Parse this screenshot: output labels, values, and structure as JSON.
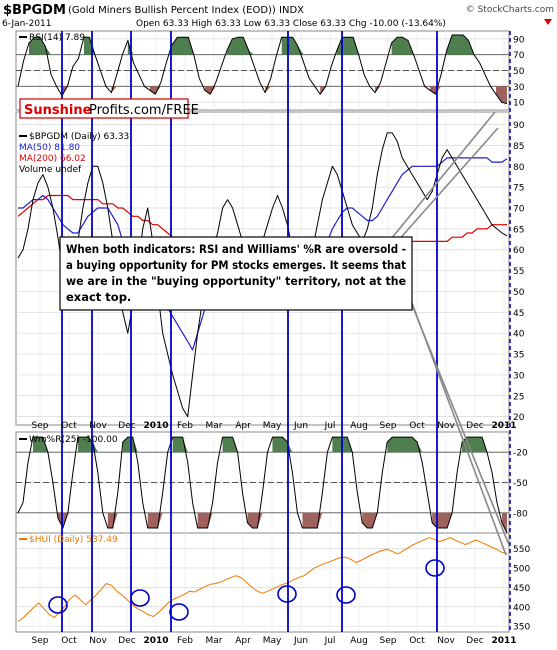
{
  "header": {
    "symbol": "$BPGDM",
    "name": "(Gold Miners Bullish Percent Index (EOD)) INDX",
    "date": "6-Jan-2011",
    "quote": "Open 63.33  High 63.33  Low 63.33  Close 63.33  Chg -10.00 (-13.64%)",
    "copyright": "© StockCharts.com"
  },
  "watermark": {
    "part1": "Sunshine",
    "part2": "Profits.com/FREE"
  },
  "annotation": {
    "lines": [
      "When both indicators: RSI and Williams' %R are oversold -",
      "a buying opportunity for PM stocks emerges. It seems that",
      "we are in the \"buying opportunity\" territory, not at the",
      "exact top."
    ]
  },
  "colors": {
    "price": "#000000",
    "ma50": "#1f1fcf",
    "ma200": "#e00000",
    "hui": "#f07800",
    "overbought_fill": "#4f7f4f",
    "oversold_fill": "#a0625c",
    "vline": "#0000cc",
    "circle": "#0000cc",
    "brand_red": "#e00000",
    "arrow": "#888888"
  },
  "chart_data": [
    {
      "panel": "rsi",
      "type": "line",
      "legend": "RSI(14) 7.89",
      "y_ticks": [
        "90",
        "70",
        "50",
        "30",
        "10"
      ],
      "ylim": [
        0,
        100
      ],
      "levels": [
        70,
        30
      ],
      "series": [
        {
          "name": "RSI(14)",
          "values": [
            30,
            62,
            85,
            92,
            92,
            80,
            45,
            30,
            18,
            30,
            55,
            65,
            92,
            92,
            70,
            50,
            30,
            22,
            45,
            70,
            88,
            60,
            45,
            30,
            25,
            20,
            35,
            60,
            82,
            92,
            92,
            92,
            70,
            40,
            25,
            20,
            35,
            55,
            75,
            90,
            92,
            92,
            75,
            55,
            35,
            22,
            40,
            68,
            92,
            92,
            92,
            80,
            60,
            40,
            30,
            20,
            30,
            55,
            75,
            92,
            92,
            92,
            70,
            45,
            30,
            22,
            35,
            60,
            85,
            92,
            92,
            88,
            70,
            50,
            30,
            25,
            20,
            45,
            75,
            95,
            95,
            95,
            88,
            70,
            60,
            45,
            30,
            20,
            10,
            8
          ]
        }
      ]
    },
    {
      "panel": "price",
      "type": "line",
      "legend": [
        "$BPGDM (Daily) 63.33",
        "MA(50) 81.80",
        "MA(200) 66.02",
        "Volume undef"
      ],
      "y_ticks": [
        "90",
        "85",
        "80",
        "75",
        "70",
        "65",
        "60",
        "55",
        "50",
        "45",
        "40",
        "35",
        "30",
        "25",
        "20"
      ],
      "ylim": [
        18,
        93
      ],
      "series": [
        {
          "name": "$BPGDM (Daily)",
          "values": [
            58,
            60,
            65,
            72,
            76,
            78,
            75,
            70,
            63,
            55,
            52,
            56,
            62,
            70,
            76,
            80,
            80,
            76,
            70,
            62,
            52,
            45,
            40,
            47,
            55,
            65,
            70,
            62,
            50,
            40,
            35,
            30,
            26,
            22,
            20,
            30,
            40,
            48,
            55,
            60,
            64,
            70,
            72,
            70,
            66,
            62,
            60,
            58,
            58,
            62,
            66,
            70,
            73,
            70,
            66,
            60,
            56,
            54,
            56,
            60,
            66,
            72,
            76,
            80,
            78,
            74,
            70,
            66,
            64,
            62,
            65,
            70,
            78,
            84,
            88,
            88,
            86,
            82,
            80,
            78,
            76,
            74,
            72,
            74,
            78,
            82,
            84,
            82,
            80,
            78,
            76,
            74,
            72,
            70,
            68,
            66,
            65,
            64,
            63.33
          ]
        },
        {
          "name": "MA(50)",
          "values": [
            70,
            70,
            71,
            72,
            72,
            73,
            72,
            70,
            68,
            66,
            65,
            64,
            64,
            66,
            68,
            69,
            70,
            70,
            70,
            68,
            66,
            62,
            58,
            55,
            52,
            52,
            54,
            52,
            50,
            48,
            46,
            44,
            42,
            40,
            38,
            36,
            40,
            44,
            48,
            52,
            55,
            57,
            59,
            60,
            60,
            60,
            59,
            58,
            57,
            57,
            58,
            59,
            60,
            61,
            62,
            61,
            60,
            58,
            57,
            57,
            58,
            60,
            62,
            65,
            67,
            69,
            70,
            70,
            69,
            68,
            67,
            67,
            68,
            70,
            72,
            74,
            76,
            78,
            79,
            80,
            80,
            80,
            80,
            80,
            80,
            81,
            82,
            82,
            82,
            82,
            82,
            82,
            82,
            82,
            82,
            81,
            81,
            81,
            81.8
          ]
        },
        {
          "name": "MA(200)",
          "values": [
            68,
            69,
            70,
            71,
            72,
            72,
            73,
            73,
            73,
            73,
            73,
            72,
            72,
            72,
            72,
            72,
            72,
            71,
            71,
            71,
            70,
            70,
            69,
            68,
            68,
            67,
            67,
            66,
            66,
            65,
            64,
            63,
            62,
            61,
            60,
            60,
            59,
            59,
            59,
            59,
            59,
            59,
            59,
            59,
            60,
            60,
            60,
            60,
            60,
            60,
            60,
            60,
            60,
            60,
            60,
            60,
            60,
            60,
            60,
            60,
            60,
            60,
            60,
            61,
            61,
            61,
            61,
            62,
            62,
            62,
            62,
            62,
            62,
            62,
            62,
            62,
            62,
            62,
            62,
            62,
            62,
            62,
            62,
            62,
            62,
            62,
            62,
            63,
            63,
            63,
            64,
            64,
            65,
            65,
            65,
            66,
            66,
            66,
            66.02
          ]
        }
      ]
    },
    {
      "panel": "williams",
      "type": "line",
      "legend": "Wm%R(25) -100.00",
      "y_ticks": [
        "-20",
        "-50",
        "-80"
      ],
      "ylim": [
        -100,
        0
      ],
      "levels": [
        -20,
        -80
      ],
      "series": [
        {
          "name": "Wm%R(25)",
          "values": [
            -80,
            -70,
            -30,
            -5,
            -5,
            -5,
            -20,
            -50,
            -85,
            -95,
            -80,
            -40,
            -5,
            -5,
            -5,
            -10,
            -40,
            -80,
            -95,
            -95,
            -60,
            -10,
            -5,
            -5,
            -30,
            -70,
            -95,
            -95,
            -95,
            -60,
            -20,
            -5,
            -5,
            -5,
            -30,
            -70,
            -95,
            -95,
            -95,
            -70,
            -30,
            -5,
            -5,
            -5,
            -20,
            -60,
            -90,
            -95,
            -95,
            -60,
            -20,
            -5,
            -5,
            -5,
            -10,
            -40,
            -80,
            -95,
            -95,
            -95,
            -95,
            -60,
            -20,
            -5,
            -5,
            -5,
            -5,
            -20,
            -60,
            -90,
            -95,
            -95,
            -80,
            -40,
            -10,
            -5,
            -5,
            -5,
            -5,
            -5,
            -10,
            -30,
            -60,
            -90,
            -95,
            -95,
            -95,
            -80,
            -40,
            -10,
            -5,
            -5,
            -5,
            -5,
            -20,
            -40,
            -70,
            -90,
            -100
          ]
        }
      ]
    },
    {
      "panel": "hui",
      "type": "line",
      "legend": "$HUI (Daily) 537.49",
      "y_ticks": [
        "550",
        "500",
        "450",
        "400",
        "350"
      ],
      "ylim": [
        335,
        590
      ],
      "series": [
        {
          "name": "$HUI (Daily)",
          "values": [
            362,
            372,
            385,
            398,
            410,
            395,
            380,
            372,
            386,
            402,
            420,
            430,
            418,
            405,
            418,
            430,
            445,
            460,
            455,
            440,
            430,
            418,
            405,
            395,
            388,
            380,
            375,
            385,
            398,
            412,
            420,
            426,
            432,
            440,
            438,
            446,
            452,
            458,
            460,
            464,
            470,
            476,
            480,
            474,
            462,
            450,
            440,
            435,
            440,
            446,
            452,
            458,
            462,
            470,
            476,
            480,
            490,
            500,
            506,
            512,
            516,
            522,
            527,
            528,
            522,
            514,
            520,
            527,
            534,
            540,
            545,
            548,
            542,
            536,
            544,
            552,
            560,
            566,
            572,
            578,
            574,
            568,
            572,
            578,
            572,
            566,
            560,
            566,
            572,
            566,
            560,
            554,
            548,
            540,
            537.49
          ]
        }
      ]
    }
  ],
  "x_axis": {
    "top_labels": [
      "Sep",
      "Oct",
      "Nov",
      "Dec",
      "2010",
      "Feb",
      "Mar",
      "Apr",
      "May",
      "Jun",
      "Jul",
      "Aug",
      "Sep",
      "Oct",
      "Nov",
      "Dec",
      "2011"
    ],
    "bottom_labels": [
      "Sep",
      "Oct",
      "Nov",
      "Dec",
      "2010",
      "Feb",
      "Mar",
      "Apr",
      "May",
      "Jun",
      "Jul",
      "Aug",
      "Sep",
      "Oct",
      "Nov",
      "Dec",
      "2011"
    ]
  }
}
